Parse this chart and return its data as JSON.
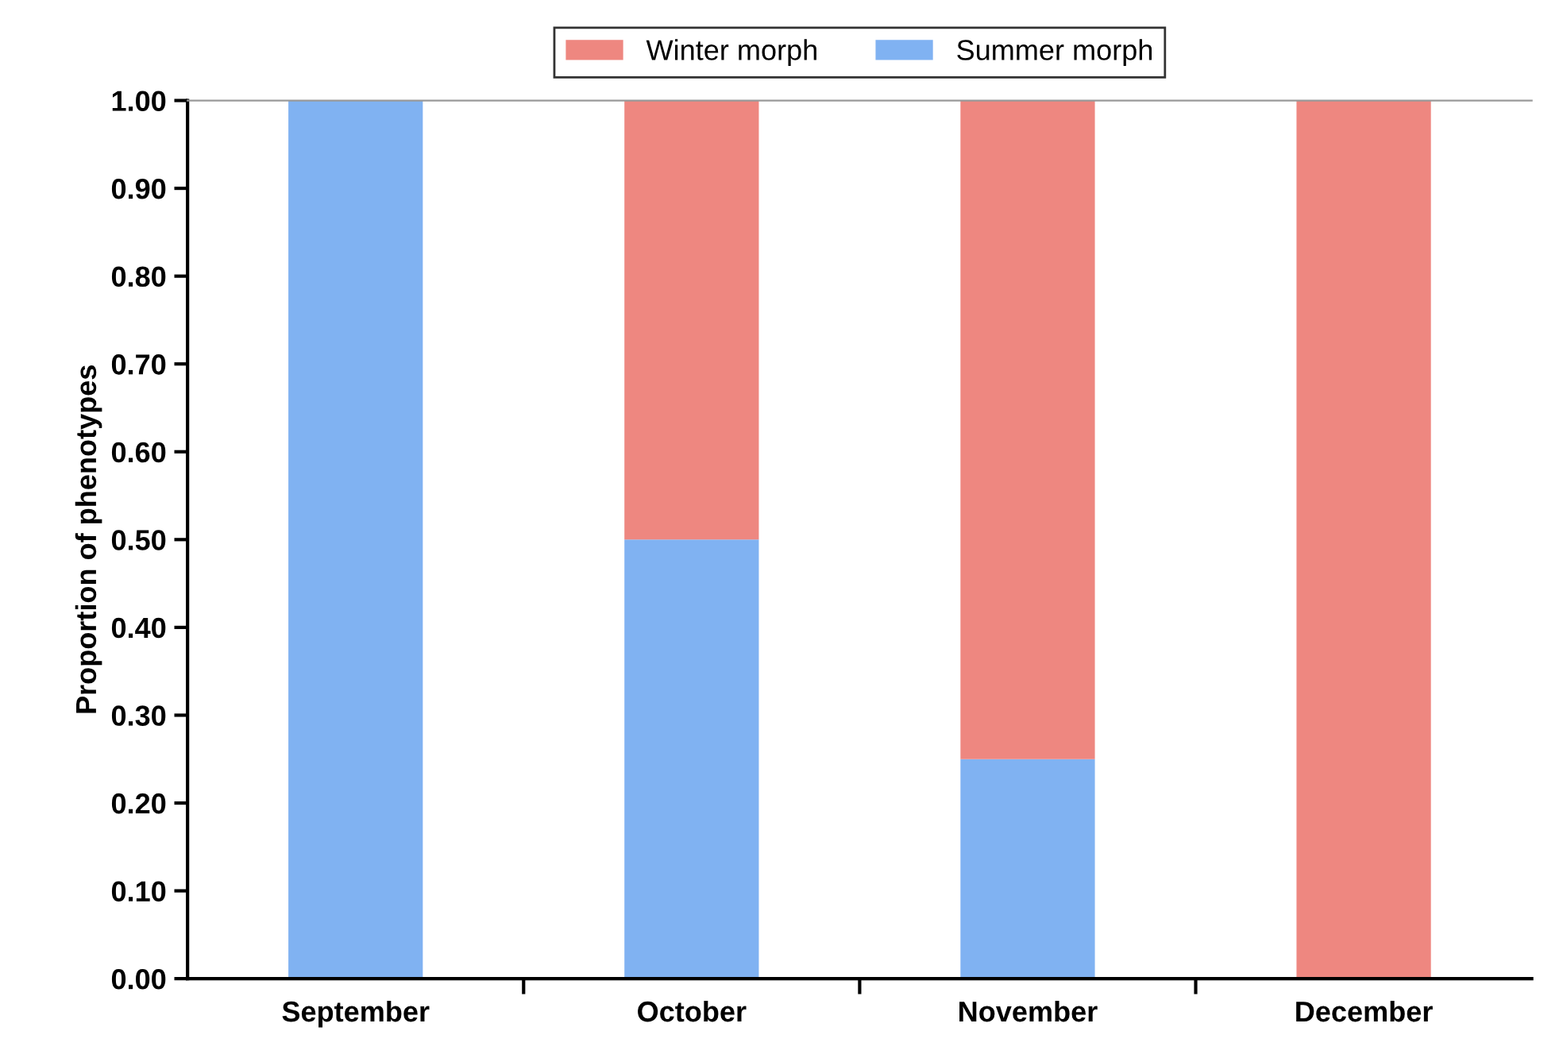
{
  "chart_data": {
    "type": "bar",
    "stacked": true,
    "ylabel": "Proportion of phenotypes",
    "categories": [
      "September",
      "October",
      "November",
      "December"
    ],
    "series": [
      {
        "name": "Summer morph",
        "color": "#80b2f2",
        "values": [
          1.0,
          0.5,
          0.25,
          0.0
        ]
      },
      {
        "name": "Winter morph",
        "color": "#ee8780",
        "values": [
          0.0,
          0.5,
          0.75,
          1.0
        ]
      }
    ],
    "ylim": [
      0,
      1.0
    ],
    "yticks": [
      {
        "value": 0,
        "label": "0.00"
      },
      {
        "value": 0.1,
        "label": "0.10"
      },
      {
        "value": 0.2,
        "label": "0.20"
      },
      {
        "value": 0.3,
        "label": "0.30"
      },
      {
        "value": 0.4,
        "label": "0.40"
      },
      {
        "value": 0.5,
        "label": "0.50"
      },
      {
        "value": 0.6,
        "label": "0.60"
      },
      {
        "value": 0.7,
        "label": "0.70"
      },
      {
        "value": 0.8,
        "label": "0.80"
      },
      {
        "value": 0.9,
        "label": "0.90"
      },
      {
        "value": 1.0,
        "label": "1.00"
      }
    ],
    "grid": false,
    "legend": "top"
  }
}
